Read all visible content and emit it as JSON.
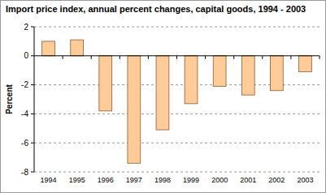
{
  "chart_data": {
    "type": "bar",
    "title": "Import price index, annual percent changes, capital goods, 1994 - 2003",
    "y_label": "Percent",
    "categories": [
      "1994",
      "1995",
      "1996",
      "1997",
      "1998",
      "1999",
      "2000",
      "2001",
      "2002",
      "2003"
    ],
    "values": [
      1.0,
      1.1,
      -3.8,
      -7.4,
      -5.1,
      -3.3,
      -2.1,
      -2.7,
      -2.4,
      -1.1
    ],
    "color": "#ffcc99",
    "ylim": [
      -8,
      2
    ],
    "yticks": [
      -8,
      -6,
      -4,
      -2,
      0,
      2
    ],
    "grid": true
  }
}
